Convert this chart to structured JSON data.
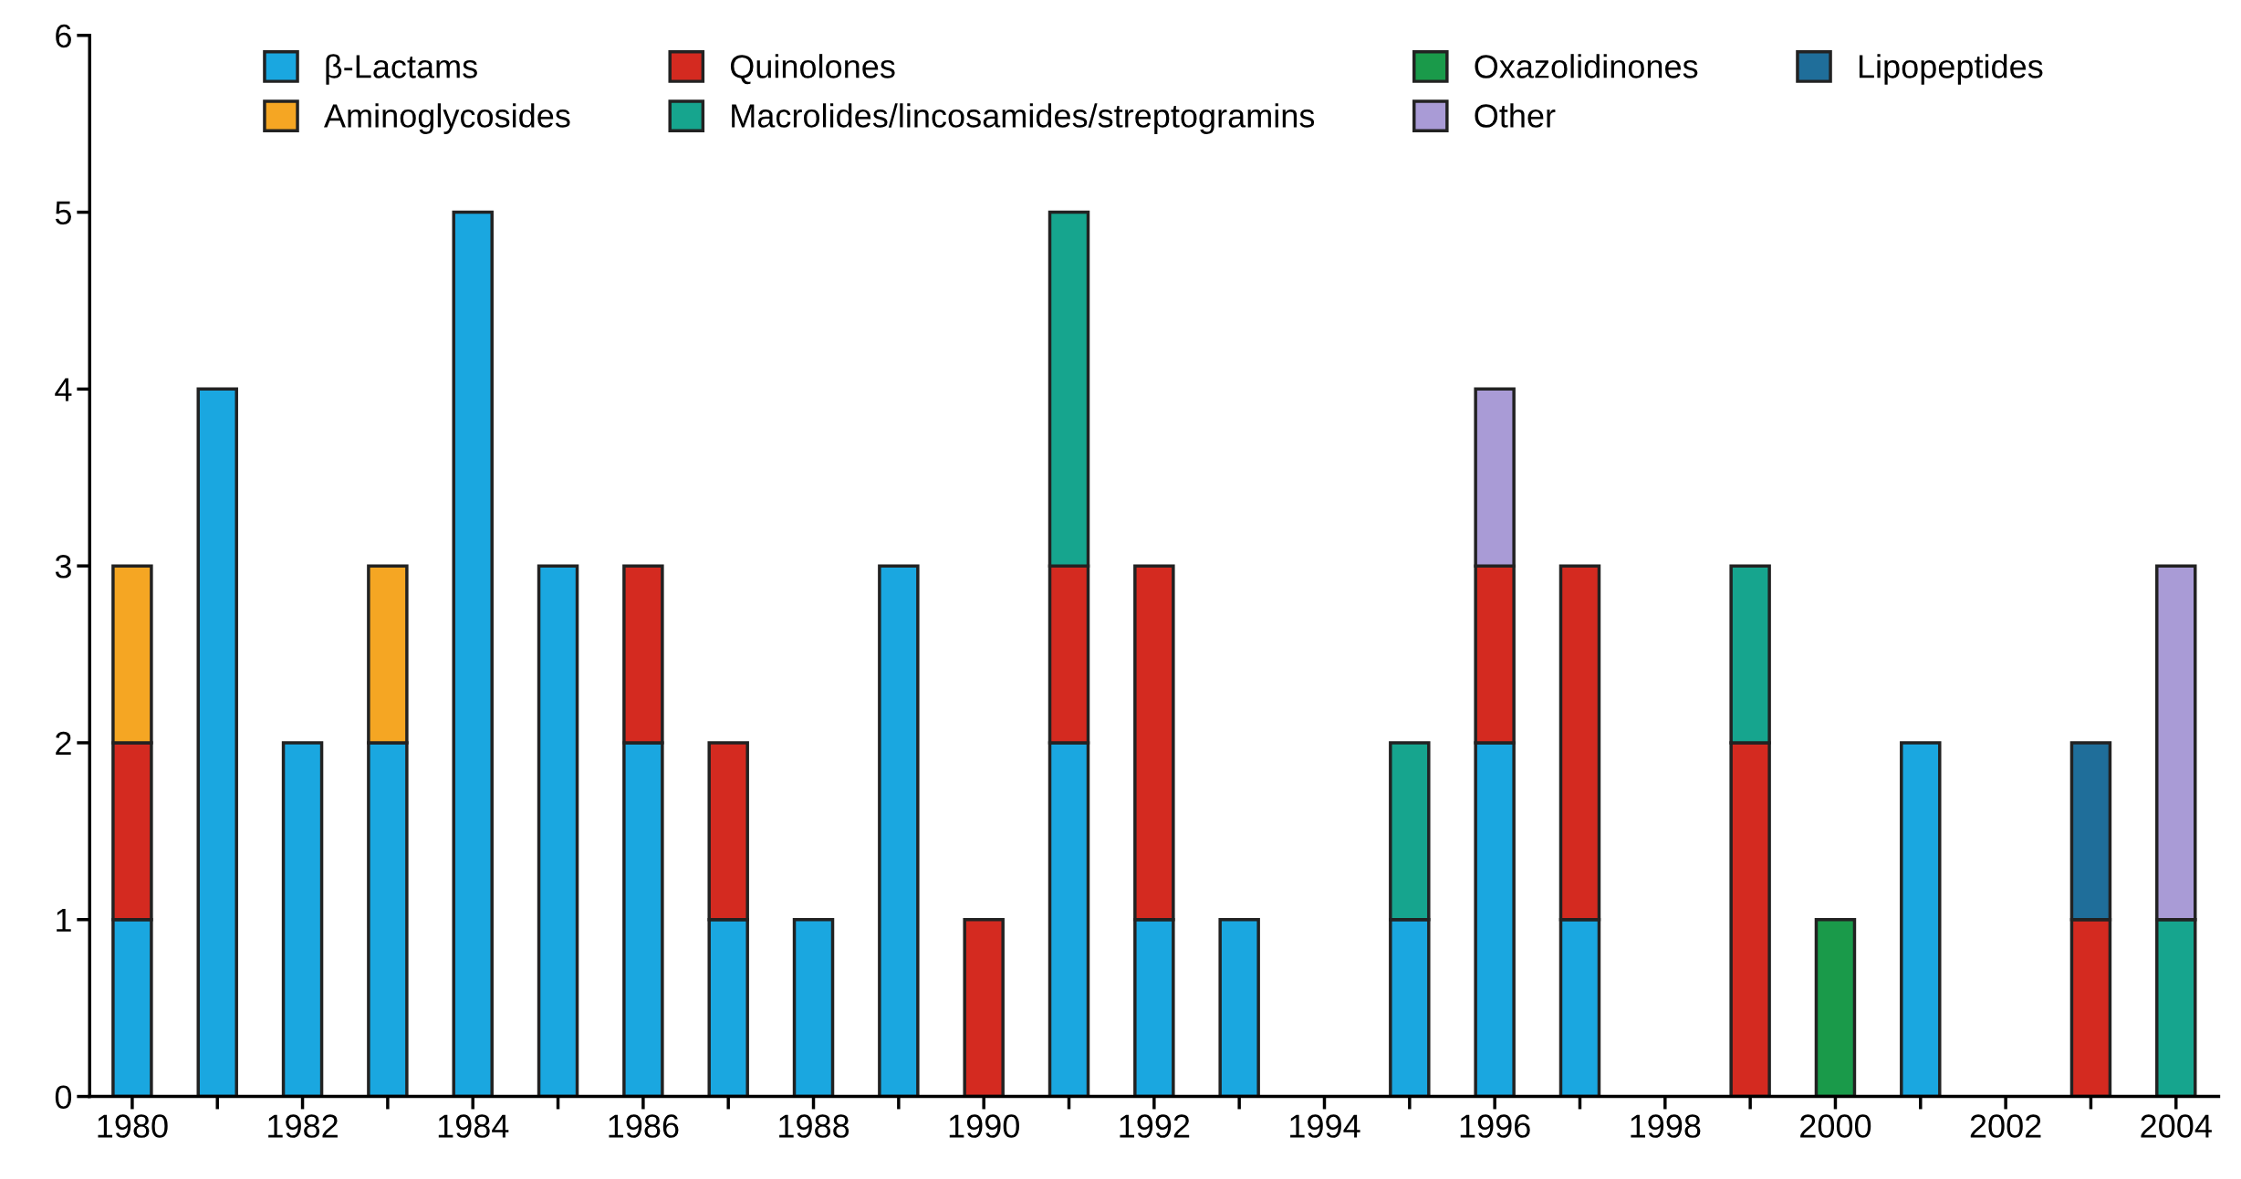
{
  "chart_data": {
    "type": "bar",
    "stacked": true,
    "categories": [
      "1980",
      null,
      "1982",
      null,
      "1984",
      null,
      "1986",
      null,
      "1988",
      null,
      "1990",
      null,
      "1992",
      null,
      "1994",
      null,
      "1996",
      null,
      "1998",
      null,
      "2000",
      null,
      "2002",
      null,
      "2004"
    ],
    "series": [
      {
        "name": "β-Lactams",
        "color": "#1aa7e0",
        "values": [
          1,
          4,
          2,
          2,
          5,
          3,
          2,
          1,
          1,
          3,
          0,
          2,
          1,
          1,
          0,
          1,
          2,
          1,
          0,
          0,
          0,
          2,
          0,
          0,
          0
        ]
      },
      {
        "name": "Quinolones",
        "color": "#d42a20",
        "values": [
          1,
          0,
          0,
          0,
          0,
          0,
          1,
          1,
          0,
          0,
          1,
          1,
          2,
          0,
          0,
          0,
          1,
          2,
          0,
          2,
          0,
          0,
          0,
          1,
          0
        ]
      },
      {
        "name": "Oxazolidinones",
        "color": "#1a9a4a",
        "values": [
          0,
          0,
          0,
          0,
          0,
          0,
          0,
          0,
          0,
          0,
          0,
          0,
          0,
          0,
          0,
          0,
          0,
          0,
          0,
          0,
          1,
          0,
          0,
          0,
          0
        ]
      },
      {
        "name": "Lipopeptides",
        "color": "#1f6e9a",
        "values": [
          0,
          0,
          0,
          0,
          0,
          0,
          0,
          0,
          0,
          0,
          0,
          0,
          0,
          0,
          0,
          0,
          0,
          0,
          0,
          0,
          0,
          0,
          0,
          1,
          0
        ]
      },
      {
        "name": "Aminoglycosides",
        "color": "#f5a623",
        "values": [
          1,
          0,
          0,
          1,
          0,
          0,
          0,
          0,
          0,
          0,
          0,
          0,
          0,
          0,
          0,
          0,
          0,
          0,
          0,
          0,
          0,
          0,
          0,
          0,
          0
        ]
      },
      {
        "name": "Macrolides/lincosamides/streptogramins",
        "color": "#16a58e",
        "values": [
          0,
          0,
          0,
          0,
          0,
          0,
          0,
          0,
          0,
          0,
          0,
          2,
          0,
          0,
          0,
          1,
          0,
          0,
          0,
          1,
          0,
          0,
          0,
          0,
          1
        ]
      },
      {
        "name": "Other",
        "color": "#a99bd6",
        "values": [
          0,
          0,
          0,
          0,
          0,
          0,
          0,
          0,
          0,
          0,
          0,
          0,
          0,
          0,
          0,
          0,
          1,
          0,
          0,
          0,
          0,
          0,
          0,
          0,
          2
        ]
      }
    ],
    "ylim": [
      0,
      6
    ],
    "yticks": [
      0,
      1,
      2,
      3,
      4,
      5,
      6
    ],
    "grid": false,
    "legend": "top"
  }
}
